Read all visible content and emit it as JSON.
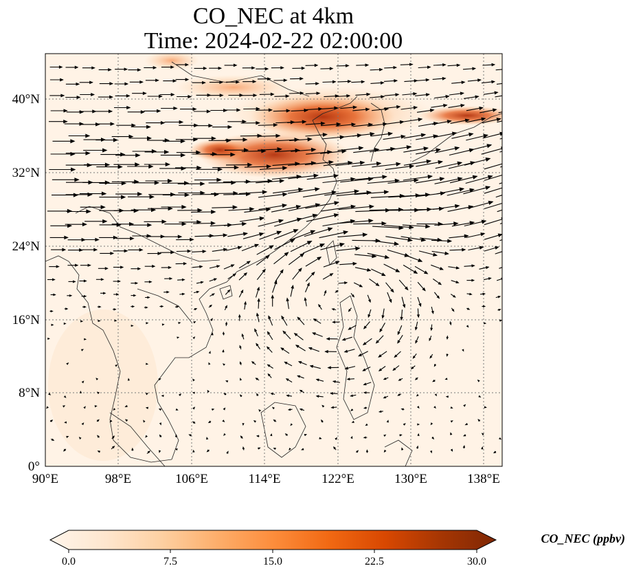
{
  "title": {
    "line1": "CO_NEC at 4km",
    "line2": "Time: 2024-02-22 02:00:00"
  },
  "map": {
    "lon_range": [
      90,
      140
    ],
    "lat_range": [
      0,
      45
    ],
    "lon_ticks": [
      "90°E",
      "98°E",
      "106°E",
      "114°E",
      "122°E",
      "130°E",
      "138°E"
    ],
    "lat_ticks": [
      "0°",
      "8°N",
      "16°N",
      "24°N",
      "32°N",
      "40°N"
    ],
    "gridlines": true
  },
  "colorbar": {
    "label": "CO_NEC (ppbv)",
    "ticks": [
      "0.0",
      "7.5",
      "15.0",
      "22.5",
      "30.0"
    ],
    "range": [
      0,
      30
    ],
    "extend": "both",
    "colors": [
      "#fff5eb",
      "#fee6ce",
      "#fdd0a2",
      "#fdae6b",
      "#fd8d3c",
      "#f16913",
      "#d94801",
      "#a63603",
      "#7f2704"
    ]
  },
  "wind_arrows": {
    "color": "#000000",
    "pattern": "westerly jet over northern half, anticyclonic circulation near 20°N 122°E, weak winds in the south"
  }
}
